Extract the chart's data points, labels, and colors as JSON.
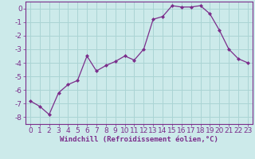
{
  "x": [
    0,
    1,
    2,
    3,
    4,
    5,
    6,
    7,
    8,
    9,
    10,
    11,
    12,
    13,
    14,
    15,
    16,
    17,
    18,
    19,
    20,
    21,
    22,
    23
  ],
  "y": [
    -6.8,
    -7.2,
    -7.8,
    -6.2,
    -5.6,
    -5.3,
    -3.5,
    -4.6,
    -4.2,
    -3.9,
    -3.5,
    -3.8,
    -3.0,
    -0.8,
    -0.6,
    0.2,
    0.1,
    0.1,
    0.2,
    -0.4,
    -1.6,
    -3.0,
    -3.7,
    -4.0
  ],
  "line_color": "#7b2d8b",
  "marker": "D",
  "marker_size": 2,
  "background_color": "#cceaea",
  "grid_color": "#aad4d4",
  "xlabel": "Windchill (Refroidissement éolien,°C)",
  "ylim": [
    -8.5,
    0.5
  ],
  "xlim": [
    -0.5,
    23.5
  ],
  "yticks": [
    0,
    -1,
    -2,
    -3,
    -4,
    -5,
    -6,
    -7,
    -8
  ],
  "xtick_labels": [
    "0",
    "1",
    "2",
    "3",
    "4",
    "5",
    "6",
    "7",
    "8",
    "9",
    "10",
    "11",
    "12",
    "13",
    "14",
    "15",
    "16",
    "17",
    "18",
    "19",
    "20",
    "21",
    "22",
    "23"
  ],
  "xlabel_fontsize": 6.5,
  "tick_fontsize": 6.5,
  "linewidth": 0.9
}
